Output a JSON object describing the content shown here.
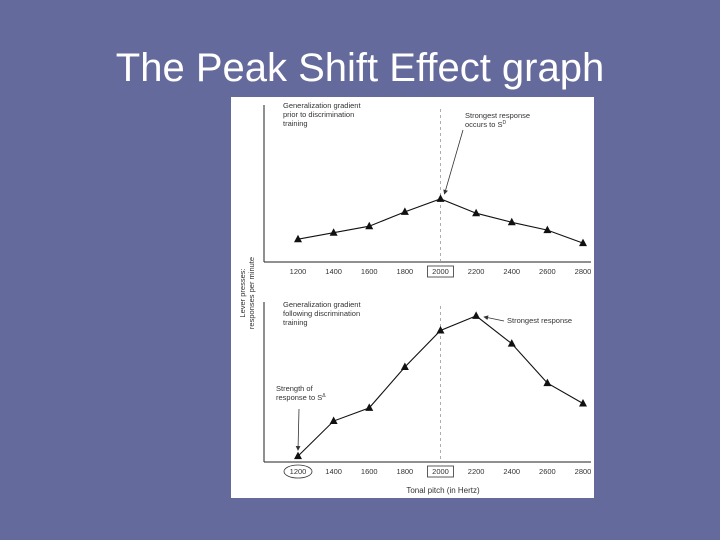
{
  "slide": {
    "title": "The Peak Shift Effect graph"
  },
  "chart_data": [
    {
      "type": "line",
      "x": [
        1200,
        1400,
        1600,
        1800,
        2000,
        2200,
        2400,
        2600,
        2800
      ],
      "x_tick_labels": [
        "1200",
        "1400",
        "1600",
        "1800",
        "2000",
        "2200",
        "2400",
        "2600",
        "2800"
      ],
      "highlighted_tick": "2000",
      "series": [
        {
          "values": [
            16,
            21,
            26,
            37,
            47,
            36,
            29,
            23,
            13
          ]
        }
      ],
      "ylim": [
        0,
        100
      ],
      "annotations": [
        {
          "text": [
            "Generalization gradient",
            "prior to discrimination",
            "training"
          ]
        },
        {
          "text": [
            "Strongest response",
            "occurs to S"
          ],
          "superscript": "D",
          "points_to_x": 2000
        }
      ]
    },
    {
      "type": "line",
      "x": [
        1200,
        1400,
        1600,
        1800,
        2000,
        2200,
        2400,
        2600,
        2800
      ],
      "x_tick_labels": [
        "1200",
        "1400",
        "1600",
        "1800",
        "2000",
        "2200",
        "2400",
        "2600",
        "2800"
      ],
      "highlighted_tick": "2000",
      "circled_tick": "1200",
      "series": [
        {
          "values": [
            2,
            26,
            35,
            63,
            88,
            98,
            79,
            52,
            38
          ]
        }
      ],
      "ylim": [
        0,
        100
      ],
      "annotations": [
        {
          "text": [
            "Generalization gradient",
            "following discrimination",
            "training"
          ]
        },
        {
          "text": [
            "Strongest response"
          ],
          "points_to_x": 2200
        },
        {
          "text": [
            "Strength of",
            "response to S"
          ],
          "superscript": "Δ",
          "points_to_x": 1200
        }
      ]
    }
  ],
  "axes": {
    "ylabel_lines": [
      "Lever presses:",
      "responses per minute"
    ],
    "xlabel": "Tonal pitch (in Hertz)",
    "reference_line_x": 2000
  }
}
